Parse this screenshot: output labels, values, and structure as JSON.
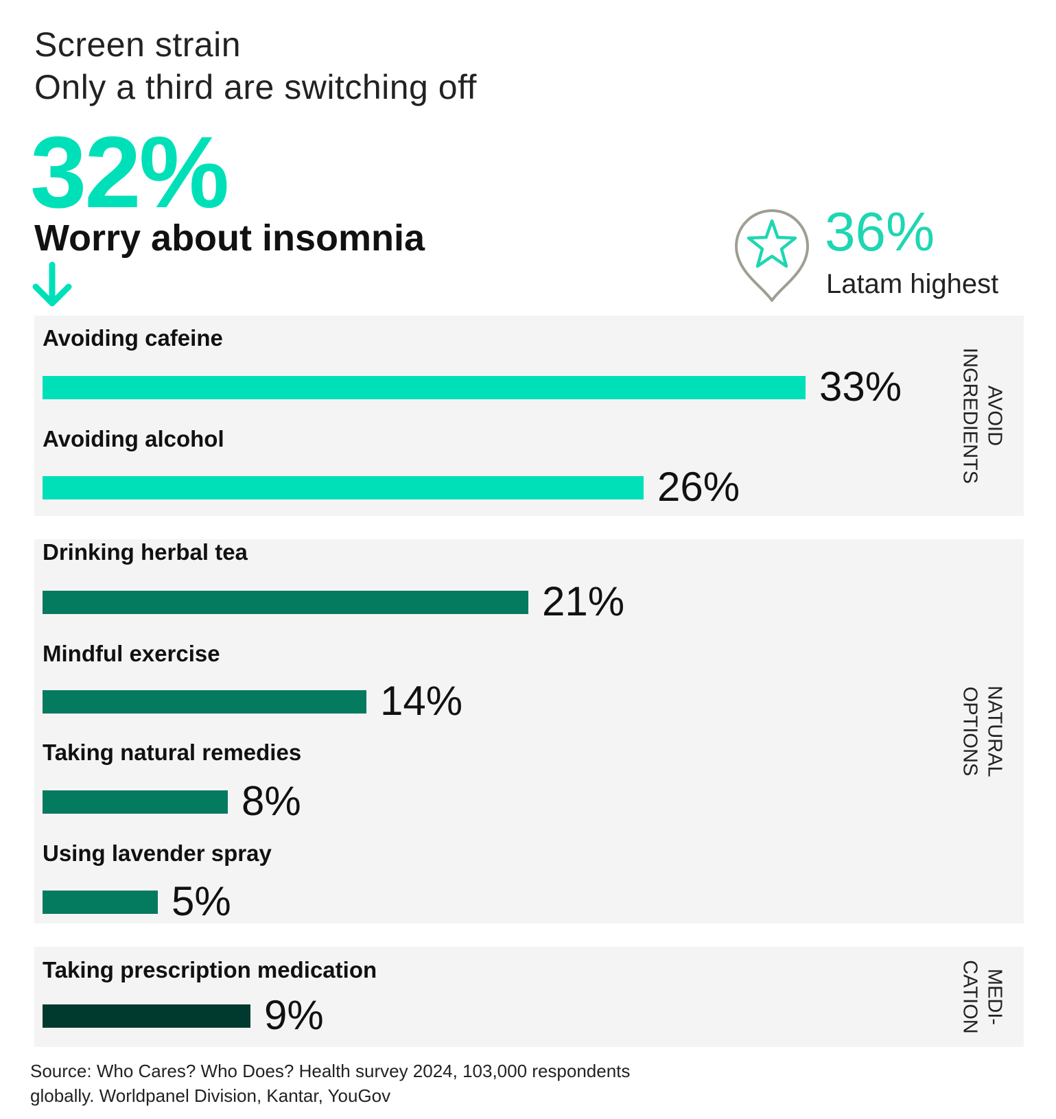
{
  "header": {
    "title_line1": "Screen strain",
    "title_line2": "Only a third are switching off",
    "big_stat": "32%",
    "big_stat_label": "Worry about insomnia"
  },
  "highlight": {
    "value": "36%",
    "label": "Latam highest",
    "icon": "map-pin-star-icon"
  },
  "colors": {
    "accent": "#00e0b8",
    "panel_bg": "#f4f4f4",
    "avoid": "#00e0b8",
    "natural": "#047a5f",
    "medication": "#003a2e"
  },
  "chart_data": {
    "type": "bar",
    "orientation": "horizontal",
    "title": "",
    "xlabel": "",
    "ylabel": "",
    "xlim": [
      0,
      33
    ],
    "grid": false,
    "categories": [
      "Avoiding cafeine",
      "Avoiding alcohol",
      "Drinking herbal tea",
      "Mindful exercise",
      "Taking natural remedies",
      "Using lavender spray",
      "Taking prescription medication"
    ],
    "values": [
      33,
      26,
      21,
      14,
      8,
      5,
      9
    ],
    "value_labels": [
      "33%",
      "26%",
      "21%",
      "14%",
      "8%",
      "5%",
      "9%"
    ],
    "groups": [
      {
        "label_lines": [
          "AVOID",
          "INGREDIENTS"
        ],
        "color": "#00e0b8",
        "indices": [
          0,
          1
        ]
      },
      {
        "label_lines": [
          "NATURAL",
          "OPTIONS"
        ],
        "color": "#047a5f",
        "indices": [
          2,
          3,
          4,
          5
        ]
      },
      {
        "label_lines": [
          "MEDI-",
          "CATION"
        ],
        "color": "#003a2e",
        "indices": [
          6
        ]
      }
    ]
  },
  "footer": {
    "source_line1": "Source: Who Cares? Who Does? Health survey 2024, 103,000 respondents",
    "source_line2": "globally. Worldpanel Division, Kantar, YouGov"
  }
}
